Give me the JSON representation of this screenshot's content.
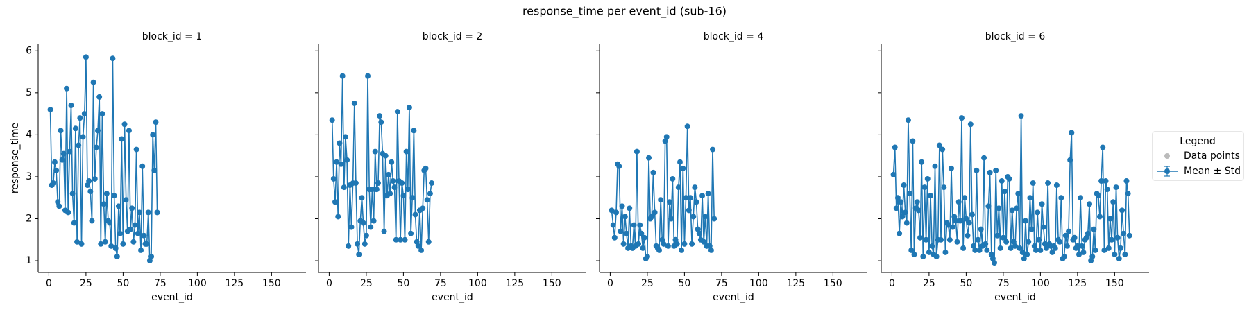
{
  "title": "response_time per event_id (sub-16)",
  "legend": {
    "title": "Legend",
    "entries": [
      {
        "name": "Data points",
        "color": "#bbbbbb"
      },
      {
        "name": "Mean ± Std",
        "color": "#1f77b4"
      }
    ]
  },
  "chart_data": [
    {
      "type": "line",
      "title": "block_id = 1",
      "x_label": "event_id",
      "y_label": "response_time",
      "color": "#1f77b4",
      "xlim": [
        -7.2,
        173.2
      ],
      "xticks": [
        0,
        25,
        50,
        75,
        100,
        125,
        150
      ],
      "ylim": [
        0.72,
        6.17
      ],
      "yticks": [
        1,
        2,
        3,
        4,
        5,
        6
      ],
      "x": [
        1,
        2,
        3,
        4,
        5,
        6,
        7,
        8,
        9,
        10,
        11,
        12,
        13,
        14,
        15,
        16,
        17,
        18,
        19,
        20,
        21,
        22,
        23,
        24,
        25,
        26,
        27,
        28,
        29,
        30,
        31,
        32,
        33,
        34,
        35,
        36,
        37,
        38,
        39,
        40,
        41,
        42,
        43,
        44,
        45,
        46,
        47,
        48,
        49,
        50,
        51,
        52,
        53,
        54,
        55,
        56,
        57,
        58,
        59,
        60,
        61,
        62,
        63,
        64,
        65,
        66,
        67,
        68,
        69,
        70,
        71,
        72,
        73
      ],
      "values": [
        4.6,
        2.8,
        2.85,
        3.35,
        3.15,
        2.4,
        2.3,
        4.1,
        3.4,
        3.55,
        2.2,
        5.1,
        2.15,
        3.6,
        4.7,
        2.6,
        1.9,
        4.15,
        1.45,
        3.75,
        4.4,
        1.4,
        3.95,
        4.5,
        5.85,
        2.8,
        2.9,
        2.65,
        1.95,
        5.25,
        2.95,
        3.7,
        4.1,
        4.9,
        1.4,
        4.5,
        2.35,
        1.45,
        2.6,
        1.95,
        1.9,
        1.35,
        5.82,
        2.55,
        1.3,
        1.1,
        2.3,
        1.65,
        3.9,
        1.4,
        4.25,
        2.45,
        1.7,
        4.1,
        1.75,
        2.25,
        1.45,
        1.85,
        3.65,
        1.65,
        2.15,
        1.25,
        3.25,
        1.6,
        1.4,
        1.4,
        2.15,
        1.0,
        1.1,
        4.0,
        3.15,
        4.3,
        2.15
      ]
    },
    {
      "type": "line",
      "title": "block_id = 2",
      "x_label": "event_id",
      "color": "#1f77b4",
      "xlim": [
        -7.2,
        173.2
      ],
      "xticks": [
        0,
        25,
        50,
        75,
        100,
        125,
        150
      ],
      "x": [
        2,
        3,
        4,
        5,
        6,
        7,
        8,
        9,
        10,
        11,
        12,
        13,
        14,
        15,
        16,
        17,
        18,
        19,
        20,
        21,
        22,
        23,
        24,
        25,
        26,
        27,
        28,
        29,
        30,
        31,
        32,
        33,
        34,
        35,
        36,
        37,
        38,
        39,
        40,
        41,
        42,
        43,
        44,
        45,
        46,
        47,
        48,
        49,
        50,
        51,
        52,
        53,
        54,
        55,
        56,
        57,
        58,
        59,
        60,
        61,
        62,
        63,
        64,
        65,
        66,
        67,
        68,
        69
      ],
      "values": [
        4.35,
        2.95,
        2.4,
        3.35,
        2.05,
        3.8,
        3.3,
        5.4,
        2.75,
        3.95,
        3.4,
        1.35,
        2.8,
        1.8,
        2.85,
        4.75,
        2.85,
        1.4,
        1.15,
        1.95,
        2.5,
        1.9,
        1.4,
        1.6,
        5.4,
        2.7,
        1.8,
        2.7,
        1.95,
        3.6,
        2.7,
        2.85,
        4.45,
        4.3,
        3.55,
        1.7,
        3.5,
        2.55,
        3.05,
        2.6,
        3.35,
        2.9,
        2.75,
        1.5,
        4.55,
        2.9,
        1.5,
        2.85,
        2.55,
        1.5,
        3.6,
        2.7,
        4.65,
        1.65,
        2.5,
        4.1,
        2.1,
        1.45,
        1.35,
        2.2,
        1.25,
        2.25,
        3.15,
        3.2,
        2.45,
        1.45,
        2.6,
        2.85
      ]
    },
    {
      "type": "line",
      "title": "block_id = 4",
      "x_label": "event_id",
      "color": "#1f77b4",
      "xlim": [
        -7.2,
        173.2
      ],
      "xticks": [
        0,
        25,
        50,
        75,
        100,
        125,
        150
      ],
      "x": [
        1,
        2,
        3,
        4,
        5,
        6,
        7,
        8,
        9,
        10,
        11,
        12,
        13,
        14,
        15,
        16,
        17,
        18,
        19,
        20,
        21,
        22,
        23,
        24,
        25,
        26,
        27,
        28,
        29,
        30,
        31,
        32,
        33,
        34,
        35,
        36,
        37,
        38,
        39,
        40,
        41,
        42,
        43,
        44,
        45,
        46,
        47,
        48,
        49,
        50,
        51,
        52,
        53,
        54,
        55,
        56,
        57,
        58,
        59,
        60,
        61,
        62,
        63,
        64,
        65,
        66,
        67,
        68,
        69,
        70
      ],
      "values": [
        2.2,
        1.85,
        1.55,
        2.15,
        3.3,
        3.25,
        1.7,
        2.3,
        1.4,
        2.05,
        1.65,
        1.3,
        2.25,
        1.35,
        1.3,
        1.85,
        1.35,
        3.6,
        1.4,
        1.85,
        1.65,
        1.3,
        1.55,
        1.05,
        1.1,
        3.45,
        2.0,
        2.05,
        3.1,
        2.15,
        1.35,
        1.3,
        1.25,
        2.45,
        1.5,
        1.4,
        3.85,
        3.95,
        1.35,
        2.4,
        2.0,
        2.95,
        1.35,
        1.5,
        1.4,
        2.75,
        3.35,
        1.25,
        3.2,
        1.4,
        2.5,
        4.2,
        2.2,
        2.5,
        1.4,
        2.05,
        2.75,
        2.4,
        1.75,
        1.65,
        1.5,
        2.55,
        1.45,
        2.05,
        1.35,
        2.6,
        1.35,
        1.25,
        3.65,
        2.0
      ]
    },
    {
      "type": "line",
      "title": "block_id = 6",
      "x_label": "event_id",
      "color": "#1f77b4",
      "xlim": [
        -7.2,
        173.2
      ],
      "xticks": [
        0,
        25,
        50,
        75,
        100,
        125,
        150
      ],
      "x": [
        1,
        2,
        3,
        4,
        5,
        6,
        7,
        8,
        9,
        10,
        11,
        12,
        13,
        14,
        15,
        16,
        17,
        18,
        19,
        20,
        21,
        22,
        23,
        24,
        25,
        26,
        27,
        28,
        29,
        30,
        31,
        32,
        33,
        34,
        35,
        36,
        37,
        38,
        39,
        40,
        41,
        42,
        43,
        44,
        45,
        46,
        47,
        48,
        49,
        50,
        51,
        52,
        53,
        54,
        55,
        56,
        57,
        58,
        59,
        60,
        61,
        62,
        63,
        64,
        65,
        66,
        67,
        68,
        69,
        70,
        71,
        72,
        73,
        74,
        75,
        76,
        77,
        78,
        79,
        80,
        81,
        82,
        83,
        84,
        85,
        86,
        87,
        88,
        89,
        90,
        91,
        92,
        93,
        94,
        95,
        96,
        97,
        98,
        99,
        100,
        101,
        102,
        103,
        104,
        105,
        106,
        107,
        108,
        109,
        110,
        111,
        112,
        113,
        114,
        115,
        116,
        117,
        118,
        119,
        120,
        121,
        122,
        123,
        124,
        125,
        126,
        127,
        128,
        129,
        130,
        131,
        132,
        133,
        134,
        135,
        136,
        137,
        138,
        139,
        140,
        141,
        142,
        143,
        144,
        145,
        146,
        147,
        148,
        149,
        150,
        151,
        152,
        153,
        154,
        155,
        156,
        157,
        158,
        159,
        160
      ],
      "values": [
        3.05,
        3.7,
        2.25,
        2.5,
        1.65,
        2.4,
        2.05,
        2.8,
        2.15,
        1.9,
        4.35,
        2.6,
        1.25,
        3.85,
        1.15,
        2.25,
        2.4,
        2.2,
        1.55,
        3.35,
        1.1,
        2.75,
        1.5,
        2.95,
        1.2,
        2.55,
        1.35,
        1.15,
        3.25,
        1.1,
        1.5,
        3.75,
        1.5,
        3.65,
        2.75,
        1.2,
        1.9,
        1.85,
        1.5,
        3.2,
        1.8,
        2.05,
        1.95,
        1.45,
        2.4,
        1.95,
        4.4,
        1.3,
        2.5,
        2.0,
        1.6,
        1.9,
        4.25,
        2.1,
        1.35,
        1.25,
        3.15,
        1.5,
        1.25,
        1.75,
        1.35,
        3.45,
        1.4,
        1.25,
        2.3,
        3.1,
        1.15,
        1.05,
        0.95,
        3.15,
        1.6,
        2.25,
        1.3,
        2.9,
        1.55,
        2.65,
        1.45,
        3.0,
        2.95,
        1.3,
        2.2,
        1.45,
        1.35,
        2.25,
        2.6,
        1.3,
        4.45,
        1.2,
        1.05,
        1.95,
        1.15,
        1.45,
        2.5,
        1.75,
        2.85,
        1.35,
        1.25,
        2.15,
        1.5,
        1.25,
        2.35,
        1.8,
        1.4,
        1.3,
        2.85,
        1.4,
        1.35,
        1.2,
        1.35,
        1.3,
        2.8,
        1.5,
        1.45,
        2.5,
        1.05,
        1.1,
        1.6,
        1.35,
        1.7,
        3.4,
        4.05,
        1.5,
        1.55,
        1.3,
        1.35,
        1.15,
        2.5,
        1.35,
        1.2,
        1.5,
        1.55,
        1.65,
        2.35,
        1.0,
        1.1,
        1.75,
        1.25,
        2.6,
        2.55,
        2.05,
        2.9,
        3.7,
        1.25,
        2.9,
        2.7,
        1.3,
        2.0,
        1.5,
        2.4,
        1.15,
        2.75,
        1.55,
        1.05,
        1.3,
        2.2,
        1.65,
        1.15,
        2.9,
        2.6,
        1.6
      ]
    }
  ]
}
